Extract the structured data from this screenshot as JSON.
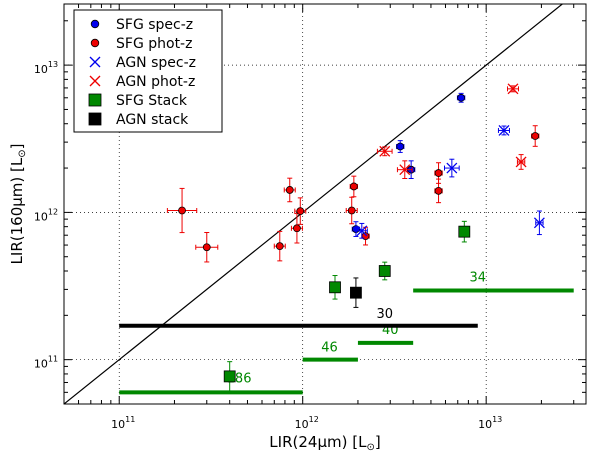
{
  "chart_data": {
    "type": "scatter",
    "xlabel": "LIR(24μm) [L⊙]",
    "ylabel": "LIR(160μm) [L⊙]",
    "x_scale": "log",
    "y_scale": "log",
    "xlim": [
      50000000000.0,
      35000000000000.0
    ],
    "ylim": [
      50000000000.0,
      26000000000000.0
    ],
    "grid": true,
    "legend_position": "top-left",
    "x_ticks": [
      {
        "value": 100000000000.0,
        "mantissa": "10",
        "exponent": "11"
      },
      {
        "value": 1000000000000.0,
        "mantissa": "10",
        "exponent": "12"
      },
      {
        "value": 10000000000000.0,
        "mantissa": "10",
        "exponent": "13"
      }
    ],
    "y_ticks": [
      {
        "value": 100000000000.0,
        "mantissa": "10",
        "exponent": "11"
      },
      {
        "value": 1000000000000.0,
        "mantissa": "10",
        "exponent": "12"
      },
      {
        "value": 10000000000000.0,
        "mantissa": "10",
        "exponent": "13"
      }
    ],
    "series": [
      {
        "name": "SFG spec-z",
        "marker": "circle",
        "color": "#0000ee",
        "points": [
          {
            "x": 3400000000000.0,
            "y": 2800000000000.0,
            "xerr": 0.02,
            "yerr": 0.04
          },
          {
            "x": 3900000000000.0,
            "y": 1950000000000.0,
            "xerr": 0.02,
            "yerr": 0.06
          },
          {
            "x": 7300000000000.0,
            "y": 6000000000000.0,
            "xerr": 0.02,
            "yerr": 0.03
          },
          {
            "x": 1950000000000.0,
            "y": 770000000000.0,
            "xerr": 0.02,
            "yerr": 0.05
          }
        ]
      },
      {
        "name": "SFG phot-z",
        "marker": "circle",
        "color": "#ee0000",
        "points": [
          {
            "x": 220000000000.0,
            "y": 1030000000000.0,
            "xerr": 0.08,
            "yerr": 0.15
          },
          {
            "x": 300000000000.0,
            "y": 580000000000.0,
            "xerr": 0.06,
            "yerr": 0.1
          },
          {
            "x": 750000000000.0,
            "y": 590000000000.0,
            "xerr": 0.03,
            "yerr": 0.1
          },
          {
            "x": 850000000000.0,
            "y": 1420000000000.0,
            "xerr": 0.03,
            "yerr": 0.08
          },
          {
            "x": 930000000000.0,
            "y": 780000000000.0,
            "xerr": 0.03,
            "yerr": 0.1
          },
          {
            "x": 970000000000.0,
            "y": 1020000000000.0,
            "xerr": 0.03,
            "yerr": 0.09
          },
          {
            "x": 1850000000000.0,
            "y": 1030000000000.0,
            "xerr": 0.03,
            "yerr": 0.09
          },
          {
            "x": 1900000000000.0,
            "y": 1500000000000.0,
            "xerr": 0.02,
            "yerr": 0.07
          },
          {
            "x": 2200000000000.0,
            "y": 690000000000.0,
            "xerr": 0.02,
            "yerr": 0.06
          },
          {
            "x": 5500000000000.0,
            "y": 1400000000000.0,
            "xerr": 0.02,
            "yerr": 0.08
          },
          {
            "x": 5500000000000.0,
            "y": 1850000000000.0,
            "xerr": 0.02,
            "yerr": 0.07
          },
          {
            "x": 18500000000000.0,
            "y": 3300000000000.0,
            "xerr": 0.02,
            "yerr": 0.07
          }
        ]
      },
      {
        "name": "AGN spec-z",
        "marker": "x",
        "color": "#0000ee",
        "points": [
          {
            "x": 2100000000000.0,
            "y": 750000000000.0,
            "xerr": 0.03,
            "yerr": 0.05
          },
          {
            "x": 6500000000000.0,
            "y": 2000000000000.0,
            "xerr": 0.04,
            "yerr": 0.06
          },
          {
            "x": 12500000000000.0,
            "y": 3600000000000.0,
            "xerr": 0.03,
            "yerr": 0.03
          },
          {
            "x": 19500000000000.0,
            "y": 850000000000.0,
            "xerr": 0.02,
            "yerr": 0.08
          }
        ]
      },
      {
        "name": "AGN phot-z",
        "marker": "x",
        "color": "#ee0000",
        "points": [
          {
            "x": 2800000000000.0,
            "y": 2600000000000.0,
            "xerr": 0.04,
            "yerr": 0.03
          },
          {
            "x": 3600000000000.0,
            "y": 1950000000000.0,
            "xerr": 0.04,
            "yerr": 0.06
          },
          {
            "x": 14000000000000.0,
            "y": 6900000000000.0,
            "xerr": 0.03,
            "yerr": 0.02
          },
          {
            "x": 15500000000000.0,
            "y": 2200000000000.0,
            "xerr": 0.02,
            "yerr": 0.05
          }
        ]
      },
      {
        "name": "SFG Stack",
        "marker": "square",
        "color": "#008800",
        "points": [
          {
            "x": 400000000000.0,
            "y": 77000000000.0,
            "yerr": 0.1
          },
          {
            "x": 1500000000000.0,
            "y": 310000000000.0,
            "yerr": 0.08
          },
          {
            "x": 2800000000000.0,
            "y": 400000000000.0,
            "yerr": 0.06
          },
          {
            "x": 7600000000000.0,
            "y": 740000000000.0,
            "yerr": 0.07
          }
        ]
      },
      {
        "name": "AGN stack",
        "marker": "square",
        "color": "#000000",
        "points": [
          {
            "x": 1950000000000.0,
            "y": 285000000000.0,
            "yerr": 0.1
          }
        ]
      }
    ],
    "one_to_one_line": true,
    "bin_bars": [
      {
        "label": "186",
        "x_start": 100000000000.0,
        "x_end": 1000000000000.0,
        "y": 60000000000.0,
        "color": "#008800",
        "label_x": 450000000000.0,
        "label_y": 70000000000.0
      },
      {
        "label": "46",
        "x_start": 1000000000000.0,
        "x_end": 2000000000000.0,
        "y": 100000000000.0,
        "color": "#008800",
        "label_x": 1400000000000.0,
        "label_y": 114000000000.0
      },
      {
        "label": "40",
        "x_start": 2000000000000.0,
        "x_end": 4000000000000.0,
        "y": 130000000000.0,
        "color": "#008800",
        "label_x": 3000000000000.0,
        "label_y": 149000000000.0
      },
      {
        "label": "34",
        "x_start": 4000000000000.0,
        "x_end": 30000000000000.0,
        "y": 295000000000.0,
        "color": "#008800",
        "label_x": 9000000000000.0,
        "label_y": 340000000000.0
      },
      {
        "label": "30",
        "x_start": 100000000000.0,
        "x_end": 9000000000000.0,
        "y": 170000000000.0,
        "color": "#000000",
        "label_x": 2800000000000.0,
        "label_y": 192000000000.0
      }
    ]
  }
}
